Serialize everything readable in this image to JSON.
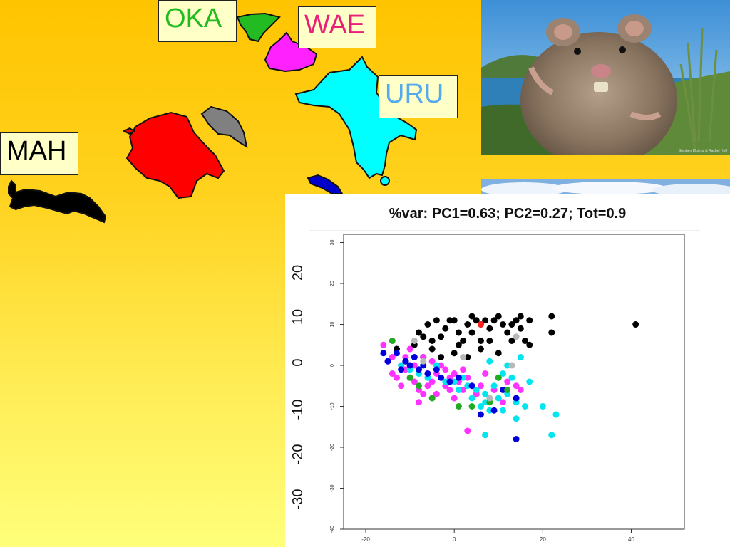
{
  "islands": {
    "oka": {
      "label": "OKA",
      "color": "#1fbb1f"
    },
    "wae": {
      "label": "WAE",
      "color": "#e8207a"
    },
    "uru": {
      "label": "URU",
      "color": "#55aaee"
    },
    "mah": {
      "label": "MAH",
      "color": "#000000"
    }
  },
  "island_fill_colors": {
    "oka": "#22bb22",
    "wae": "#ff22ff",
    "uru": "#00ffff",
    "red": "#ff0000",
    "grey": "#808080",
    "blue": "#0000cc",
    "mah": "#000000"
  },
  "photo": {
    "subject": "rodent-photo",
    "credit_text": "Stephen Elgie and Rachel Hoff"
  },
  "chart_data": {
    "type": "scatter",
    "title": "%var: PC1=0.63; PC2=0.27; Tot=0.9",
    "xlim": [
      -25,
      52
    ],
    "ylim": [
      -40,
      32
    ],
    "x_ticks": [
      -20,
      0,
      20,
      40
    ],
    "y_ticks_inner": [
      30,
      20,
      10,
      0,
      -10,
      -20,
      -30,
      -40
    ],
    "y_ticks_outer": [
      20,
      10,
      0,
      -10,
      -20,
      -30
    ],
    "grid": false,
    "legend": "none",
    "series": [
      {
        "color": "#000000",
        "points": [
          [
            -13,
            4
          ],
          [
            -11,
            1
          ],
          [
            -8,
            8
          ],
          [
            -7,
            7
          ],
          [
            -6,
            10
          ],
          [
            -5,
            6
          ],
          [
            -4,
            11
          ],
          [
            -3,
            7
          ],
          [
            -2,
            9
          ],
          [
            -1,
            11
          ],
          [
            0,
            11
          ],
          [
            1,
            8
          ],
          [
            1,
            5
          ],
          [
            2,
            6
          ],
          [
            3,
            10
          ],
          [
            4,
            12
          ],
          [
            4,
            8
          ],
          [
            5,
            11
          ],
          [
            6,
            6
          ],
          [
            6,
            10
          ],
          [
            7,
            11
          ],
          [
            8,
            9
          ],
          [
            9,
            11
          ],
          [
            10,
            12
          ],
          [
            11,
            10
          ],
          [
            12,
            8
          ],
          [
            13,
            10
          ],
          [
            14,
            11
          ],
          [
            15,
            12
          ],
          [
            15,
            9
          ],
          [
            16,
            6
          ],
          [
            17,
            11
          ],
          [
            17,
            5
          ],
          [
            22,
            12
          ],
          [
            22,
            8
          ],
          [
            41,
            10
          ],
          [
            -9,
            5
          ],
          [
            -7,
            2
          ],
          [
            -5,
            4
          ],
          [
            -3,
            2
          ],
          [
            0,
            3
          ],
          [
            3,
            2
          ],
          [
            6,
            4
          ],
          [
            8,
            6
          ],
          [
            10,
            3
          ],
          [
            13,
            6
          ]
        ]
      },
      {
        "color": "#ff2020",
        "points": [
          [
            6,
            10
          ]
        ]
      },
      {
        "color": "#ff33ff",
        "points": [
          [
            -16,
            5
          ],
          [
            -15,
            1
          ],
          [
            -14,
            2
          ],
          [
            -14,
            -2
          ],
          [
            -13,
            -3
          ],
          [
            -12,
            0
          ],
          [
            -12,
            -5
          ],
          [
            -11,
            -1
          ],
          [
            -11,
            2
          ],
          [
            -10,
            4
          ],
          [
            -10,
            -3
          ],
          [
            -9,
            0
          ],
          [
            -9,
            -4
          ],
          [
            -8,
            -6
          ],
          [
            -8,
            -9
          ],
          [
            -7,
            2
          ],
          [
            -7,
            -7
          ],
          [
            -6,
            -2
          ],
          [
            -6,
            -5
          ],
          [
            -5,
            1
          ],
          [
            -5,
            -4
          ],
          [
            -4,
            -2
          ],
          [
            -4,
            -7
          ],
          [
            -3,
            0
          ],
          [
            -3,
            -3
          ],
          [
            -2,
            -1
          ],
          [
            -2,
            -5
          ],
          [
            -1,
            -3
          ],
          [
            -1,
            -6
          ],
          [
            0,
            -2
          ],
          [
            0,
            -8
          ],
          [
            1,
            -4
          ],
          [
            2,
            -1
          ],
          [
            2,
            -6
          ],
          [
            3,
            -3
          ],
          [
            5,
            -7
          ],
          [
            6,
            -5
          ],
          [
            7,
            -2
          ],
          [
            9,
            -6
          ],
          [
            10,
            -3
          ],
          [
            11,
            -9
          ],
          [
            12,
            -4
          ],
          [
            14,
            -5
          ],
          [
            15,
            -6
          ],
          [
            3,
            -16
          ]
        ]
      },
      {
        "color": "#00e5ee",
        "points": [
          [
            -12,
            0
          ],
          [
            -10,
            -1
          ],
          [
            -8,
            -2
          ],
          [
            -6,
            -3
          ],
          [
            -4,
            0
          ],
          [
            -2,
            -4
          ],
          [
            0,
            -4
          ],
          [
            1,
            -6
          ],
          [
            2,
            -3
          ],
          [
            3,
            -5
          ],
          [
            4,
            -8
          ],
          [
            5,
            -6
          ],
          [
            6,
            -10
          ],
          [
            7,
            -7
          ],
          [
            7,
            -9
          ],
          [
            8,
            -11
          ],
          [
            9,
            -5
          ],
          [
            10,
            -8
          ],
          [
            11,
            -2
          ],
          [
            11,
            -11
          ],
          [
            12,
            0
          ],
          [
            12,
            -7
          ],
          [
            13,
            -3
          ],
          [
            14,
            -9
          ],
          [
            14,
            -13
          ],
          [
            15,
            2
          ],
          [
            16,
            -10
          ],
          [
            17,
            -4
          ],
          [
            20,
            -10
          ],
          [
            23,
            -12
          ],
          [
            22,
            -17
          ],
          [
            7,
            -17
          ],
          [
            8,
            1
          ],
          [
            10,
            -3
          ]
        ]
      },
      {
        "color": "#0000dd",
        "points": [
          [
            -16,
            3
          ],
          [
            -15,
            1
          ],
          [
            -13,
            3
          ],
          [
            -12,
            -1
          ],
          [
            -11,
            1
          ],
          [
            -10,
            0
          ],
          [
            -9,
            2
          ],
          [
            -8,
            -1
          ],
          [
            -7,
            0
          ],
          [
            -6,
            -2
          ],
          [
            -4,
            -1
          ],
          [
            -3,
            -3
          ],
          [
            -1,
            -4
          ],
          [
            1,
            -3
          ],
          [
            4,
            -5
          ],
          [
            6,
            -12
          ],
          [
            9,
            -11
          ],
          [
            11,
            -6
          ],
          [
            14,
            -8
          ],
          [
            14,
            -18
          ]
        ]
      },
      {
        "color": "#22aa22",
        "points": [
          [
            -14,
            6
          ],
          [
            -10,
            -3
          ],
          [
            -8,
            -5
          ],
          [
            -5,
            -8
          ],
          [
            1,
            -10
          ],
          [
            4,
            -10
          ],
          [
            8,
            -9
          ],
          [
            10,
            -3
          ],
          [
            12,
            -6
          ]
        ]
      },
      {
        "color": "#b8b8b8",
        "points": [
          [
            -9,
            6
          ],
          [
            -7,
            1
          ],
          [
            2,
            2
          ],
          [
            8,
            -8
          ],
          [
            13,
            0
          ],
          [
            14,
            7
          ]
        ]
      }
    ]
  }
}
